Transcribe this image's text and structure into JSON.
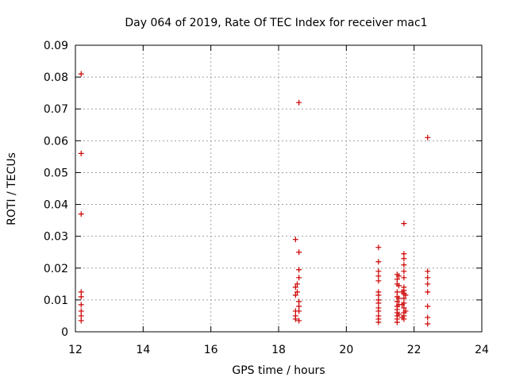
{
  "chart_data": {
    "type": "scatter",
    "title": "Day 064 of 2019, Rate Of TEC Index for receiver mac1",
    "xlabel": "GPS time / hours",
    "ylabel": "ROTI / TECUs",
    "xlim": [
      12,
      24
    ],
    "ylim": [
      0,
      0.09
    ],
    "x_ticks": [
      12,
      14,
      16,
      18,
      20,
      22,
      24
    ],
    "x_tick_labels": [
      "12",
      "14",
      "16",
      "18",
      "20",
      "22",
      "24"
    ],
    "y_ticks": [
      0,
      0.01,
      0.02,
      0.03,
      0.04,
      0.05,
      0.06,
      0.07,
      0.08,
      0.09
    ],
    "y_tick_labels": [
      "0",
      "0.01",
      "0.02",
      "0.03",
      "0.04",
      "0.05",
      "0.06",
      "0.07",
      "0.08",
      "0.09"
    ],
    "grid": true,
    "marker": "+",
    "series": [
      {
        "name": "mac1",
        "color": "#cc0000",
        "points": [
          [
            12.17,
            0.081
          ],
          [
            12.17,
            0.056
          ],
          [
            12.17,
            0.037
          ],
          [
            12.17,
            0.0125
          ],
          [
            12.17,
            0.011
          ],
          [
            12.17,
            0.0085
          ],
          [
            12.17,
            0.0065
          ],
          [
            12.17,
            0.005
          ],
          [
            12.17,
            0.0035
          ],
          [
            18.5,
            0.029
          ],
          [
            18.6,
            0.072
          ],
          [
            18.6,
            0.025
          ],
          [
            18.6,
            0.0195
          ],
          [
            18.6,
            0.017
          ],
          [
            18.55,
            0.015
          ],
          [
            18.5,
            0.014
          ],
          [
            18.55,
            0.0125
          ],
          [
            18.5,
            0.0115
          ],
          [
            18.6,
            0.0095
          ],
          [
            18.6,
            0.008
          ],
          [
            18.5,
            0.0065
          ],
          [
            18.6,
            0.0065
          ],
          [
            18.5,
            0.005
          ],
          [
            18.6,
            0.0035
          ],
          [
            18.5,
            0.004
          ],
          [
            20.95,
            0.0265
          ],
          [
            20.95,
            0.022
          ],
          [
            20.95,
            0.019
          ],
          [
            20.95,
            0.0175
          ],
          [
            20.95,
            0.016
          ],
          [
            20.95,
            0.0125
          ],
          [
            20.95,
            0.0115
          ],
          [
            20.95,
            0.01
          ],
          [
            20.95,
            0.009
          ],
          [
            20.95,
            0.0075
          ],
          [
            20.95,
            0.0065
          ],
          [
            20.95,
            0.005
          ],
          [
            20.95,
            0.004
          ],
          [
            20.95,
            0.003
          ],
          [
            21.5,
            0.018
          ],
          [
            21.5,
            0.0165
          ],
          [
            21.5,
            0.015
          ],
          [
            21.5,
            0.0125
          ],
          [
            21.5,
            0.011
          ],
          [
            21.5,
            0.0095
          ],
          [
            21.5,
            0.008
          ],
          [
            21.5,
            0.007
          ],
          [
            21.5,
            0.006
          ],
          [
            21.5,
            0.005
          ],
          [
            21.5,
            0.004
          ],
          [
            21.5,
            0.003
          ],
          [
            21.55,
            0.0175
          ],
          [
            21.55,
            0.0145
          ],
          [
            21.55,
            0.0105
          ],
          [
            21.55,
            0.0085
          ],
          [
            21.55,
            0.0055
          ],
          [
            21.7,
            0.034
          ],
          [
            21.7,
            0.0245
          ],
          [
            21.7,
            0.023
          ],
          [
            21.7,
            0.021
          ],
          [
            21.7,
            0.019
          ],
          [
            21.7,
            0.017
          ],
          [
            21.7,
            0.014
          ],
          [
            21.7,
            0.013
          ],
          [
            21.7,
            0.012
          ],
          [
            21.7,
            0.0105
          ],
          [
            21.7,
            0.009
          ],
          [
            21.7,
            0.0075
          ],
          [
            21.7,
            0.006
          ],
          [
            21.7,
            0.005
          ],
          [
            21.7,
            0.004
          ],
          [
            21.65,
            0.0125
          ],
          [
            21.65,
            0.0085
          ],
          [
            21.65,
            0.0045
          ],
          [
            21.75,
            0.0115
          ],
          [
            21.75,
            0.0065
          ],
          [
            22.4,
            0.061
          ],
          [
            22.4,
            0.019
          ],
          [
            22.4,
            0.017
          ],
          [
            22.4,
            0.015
          ],
          [
            22.4,
            0.0125
          ],
          [
            22.4,
            0.008
          ],
          [
            22.4,
            0.0045
          ],
          [
            22.4,
            0.0025
          ]
        ]
      }
    ]
  }
}
